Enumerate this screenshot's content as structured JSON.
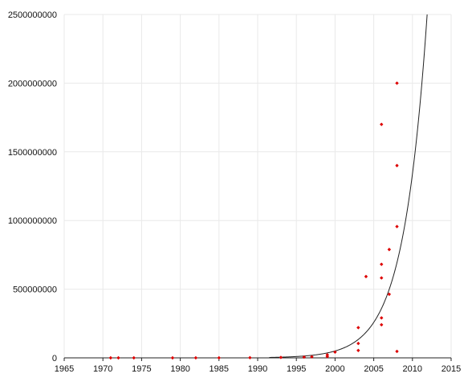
{
  "chart_data": {
    "type": "scatter",
    "title": "",
    "xlabel": "",
    "ylabel": "",
    "xlim": [
      1965,
      2015
    ],
    "ylim": [
      0,
      2500000000
    ],
    "x_ticks": [
      1965,
      1970,
      1975,
      1980,
      1985,
      1990,
      1995,
      2000,
      2005,
      2010,
      2015
    ],
    "y_ticks": [
      0,
      500000000,
      1000000000,
      1500000000,
      2000000000,
      2500000000
    ],
    "x_tick_labels": [
      "1965",
      "1970",
      "1975",
      "1980",
      "1985",
      "1990",
      "1995",
      "2000",
      "2005",
      "2010",
      "2015"
    ],
    "y_tick_labels": [
      "0",
      "500000000",
      "1000000000",
      "1500000000",
      "2000000000",
      "2500000000"
    ],
    "grid": true,
    "legend": "none",
    "colors": {
      "points": "#dd0000",
      "trend": "#222222",
      "grid": "#e9e9e9"
    },
    "points": [
      {
        "x": 1971,
        "y": 2300
      },
      {
        "x": 1972,
        "y": 3500
      },
      {
        "x": 1974,
        "y": 6000
      },
      {
        "x": 1979,
        "y": 29000
      },
      {
        "x": 1982,
        "y": 134000
      },
      {
        "x": 1985,
        "y": 275000
      },
      {
        "x": 1989,
        "y": 1200000
      },
      {
        "x": 1993,
        "y": 3100000
      },
      {
        "x": 1996,
        "y": 5500000
      },
      {
        "x": 1997,
        "y": 7500000
      },
      {
        "x": 1999,
        "y": 9500000
      },
      {
        "x": 1999,
        "y": 22000000
      },
      {
        "x": 2000,
        "y": 42000000
      },
      {
        "x": 2003,
        "y": 54000000
      },
      {
        "x": 2003,
        "y": 105000000
      },
      {
        "x": 2003,
        "y": 220000000
      },
      {
        "x": 2004,
        "y": 592000000
      },
      {
        "x": 2006,
        "y": 241000000
      },
      {
        "x": 2006,
        "y": 291000000
      },
      {
        "x": 2006,
        "y": 582000000
      },
      {
        "x": 2006,
        "y": 681000000
      },
      {
        "x": 2006,
        "y": 1700000000
      },
      {
        "x": 2007,
        "y": 463000000
      },
      {
        "x": 2007,
        "y": 789000000
      },
      {
        "x": 2008,
        "y": 47000000
      },
      {
        "x": 2008,
        "y": 956000000
      },
      {
        "x": 2008,
        "y": 1400000000
      },
      {
        "x": 2008,
        "y": 2000000000
      }
    ],
    "trendline": {
      "type": "exponential",
      "x_range": [
        1991.5,
        2011.9
      ],
      "anchor_x": 2011.9,
      "anchor_y": 2500000000,
      "reference_x": 1993,
      "reference_y": 5000000
    }
  }
}
